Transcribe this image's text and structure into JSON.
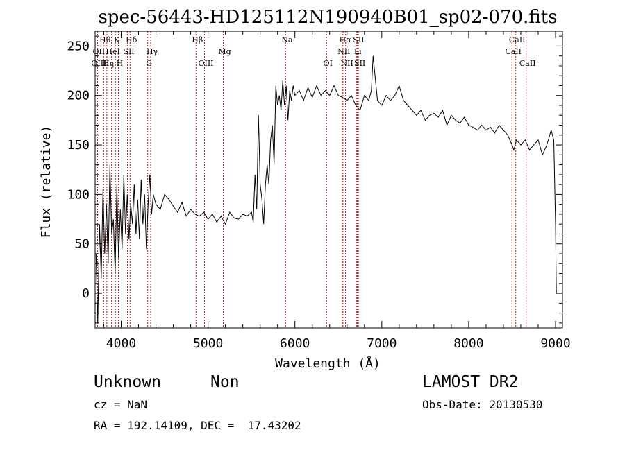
{
  "chart_data": {
    "type": "line",
    "title": "spec-56443-HD125112N190940B01_sp02-070.fits",
    "xlabel": "Wavelength (Å)",
    "ylabel": "Flux (relative)",
    "xlim": [
      3700,
      9080
    ],
    "ylim": [
      -35,
      265
    ],
    "xticks": [
      4000,
      5000,
      6000,
      7000,
      8000,
      9000
    ],
    "yticks": [
      0,
      50,
      100,
      150,
      200,
      250
    ],
    "x_tick_labels": [
      "4000",
      "5000",
      "6000",
      "7000",
      "8000",
      "9000"
    ],
    "y_tick_labels": [
      "0",
      "50",
      "100",
      "150",
      "200",
      "250"
    ],
    "grid": false,
    "line_color": "#000000",
    "marker_color": "#b22222",
    "spectral_lines": [
      {
        "label": "Hθ",
        "x": 3798,
        "row": 0
      },
      {
        "label": "K",
        "x": 3934,
        "row": 0
      },
      {
        "label": "Hδ",
        "x": 4102,
        "row": 0
      },
      {
        "label": "Hβ",
        "x": 4861,
        "row": 0
      },
      {
        "label": "Na",
        "x": 5893,
        "row": 0
      },
      {
        "label": "Hα",
        "x": 6563,
        "row": 0
      },
      {
        "label": "SII",
        "x": 6717,
        "row": 0
      },
      {
        "label": "CaII",
        "x": 8542,
        "row": 0
      },
      {
        "label": "OII",
        "x": 3727,
        "row": 1
      },
      {
        "label": "HeI",
        "x": 3889,
        "row": 1
      },
      {
        "label": "SII",
        "x": 4072,
        "row": 1
      },
      {
        "label": "Hγ",
        "x": 4340,
        "row": 1
      },
      {
        "label": "Mg",
        "x": 5175,
        "row": 1
      },
      {
        "label": "NII",
        "x": 6548,
        "row": 1
      },
      {
        "label": "Li",
        "x": 6708,
        "row": 1
      },
      {
        "label": "CaII",
        "x": 8498,
        "row": 1
      },
      {
        "label": "OIII",
        "x": 3727,
        "row": 2
      },
      {
        "label": "Hη",
        "x": 3835,
        "row": 2
      },
      {
        "label": "H",
        "x": 3968,
        "row": 2
      },
      {
        "label": "G",
        "x": 4305,
        "row": 2
      },
      {
        "label": "OIII",
        "x": 4959,
        "row": 2
      },
      {
        "label": "OI",
        "x": 6364,
        "row": 2
      },
      {
        "label": "NII",
        "x": 6583,
        "row": 2
      },
      {
        "label": "SII",
        "x": 6731,
        "row": 2
      },
      {
        "label": "CaII",
        "x": 8662,
        "row": 2
      }
    ],
    "series": [
      {
        "x": [
          3710,
          3730,
          3750,
          3770,
          3790,
          3810,
          3830,
          3850,
          3870,
          3890,
          3910,
          3930,
          3950,
          3970,
          3990,
          4010,
          4030,
          4050,
          4070,
          4090,
          4110,
          4130,
          4150,
          4170,
          4190,
          4210,
          4230,
          4250,
          4270,
          4290,
          4310,
          4330,
          4350,
          4370,
          4400,
          4450,
          4500,
          4550,
          4600,
          4650,
          4700,
          4750,
          4800,
          4850,
          4900,
          4950,
          5000,
          5050,
          5100,
          5150,
          5200,
          5250,
          5300,
          5350,
          5400,
          5450,
          5500,
          5520,
          5540,
          5560,
          5580,
          5600,
          5620,
          5640,
          5660,
          5680,
          5700,
          5720,
          5740,
          5760,
          5780,
          5800,
          5820,
          5840,
          5860,
          5880,
          5900,
          5920,
          5940,
          5960,
          5980,
          6000,
          6050,
          6100,
          6150,
          6200,
          6250,
          6300,
          6350,
          6400,
          6450,
          6500,
          6550,
          6600,
          6650,
          6700,
          6750,
          6800,
          6850,
          6880,
          6900,
          6950,
          7000,
          7050,
          7100,
          7150,
          7200,
          7250,
          7300,
          7350,
          7400,
          7450,
          7500,
          7550,
          7600,
          7650,
          7700,
          7750,
          7800,
          7850,
          7900,
          7950,
          8000,
          8050,
          8100,
          8150,
          8200,
          8250,
          8300,
          8350,
          8400,
          8450,
          8500,
          8520,
          8550,
          8600,
          8650,
          8700,
          8750,
          8800,
          8850,
          8900,
          8950,
          8980,
          9000,
          9010
        ],
        "y": [
          40,
          -30,
          70,
          15,
          105,
          40,
          90,
          30,
          130,
          60,
          75,
          20,
          110,
          35,
          85,
          45,
          120,
          60,
          100,
          55,
          90,
          70,
          110,
          60,
          95,
          55,
          115,
          70,
          100,
          45,
          90,
          120,
          80,
          100,
          90,
          85,
          100,
          95,
          88,
          82,
          92,
          78,
          85,
          80,
          78,
          82,
          75,
          80,
          72,
          78,
          70,
          82,
          76,
          75,
          80,
          78,
          82,
          72,
          120,
          85,
          180,
          110,
          95,
          70,
          110,
          130,
          110,
          155,
          170,
          130,
          210,
          190,
          200,
          185,
          215,
          190,
          210,
          175,
          205,
          195,
          210,
          200,
          205,
          195,
          208,
          198,
          210,
          200,
          205,
          200,
          210,
          200,
          198,
          195,
          200,
          190,
          185,
          200,
          195,
          205,
          240,
          195,
          190,
          200,
          195,
          200,
          210,
          195,
          190,
          185,
          180,
          185,
          175,
          180,
          182,
          178,
          185,
          170,
          180,
          175,
          172,
          178,
          170,
          168,
          165,
          170,
          165,
          168,
          162,
          170,
          165,
          160,
          150,
          145,
          155,
          150,
          155,
          145,
          150,
          155,
          140,
          150,
          165,
          155,
          70,
          0
        ]
      }
    ]
  },
  "footer": {
    "object_class": "Unknown",
    "subclass": "Non",
    "survey": "LAMOST DR2",
    "cz": "cz = NaN",
    "obs_date": "Obs-Date: 20130530",
    "coords": "RA = 192.14109, DEC =  17.43202"
  }
}
